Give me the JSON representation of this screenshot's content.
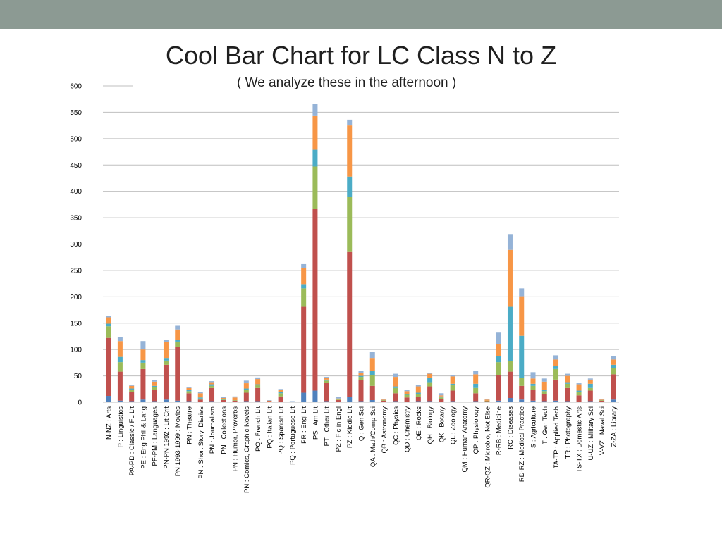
{
  "header": {
    "title": "Cool Bar Chart for LC Class N to Z",
    "subtitle": "( We analyze these in the afternoon )"
  },
  "colors": {
    "top_bar": "#8c9a93",
    "series": [
      "#4f81bd",
      "#c0504d",
      "#9bbb59",
      "#4bacc6",
      "#f79646",
      "#95b3d7"
    ],
    "grid": "#bfbfbf"
  },
  "chart_data": {
    "type": "bar",
    "stacked": true,
    "title": "Cool Bar Chart for LC Class N to Z",
    "subtitle": "( We analyze these in the afternoon )",
    "xlabel": "",
    "ylabel": "",
    "ylim": [
      0,
      600
    ],
    "yticks": [
      0,
      50,
      100,
      150,
      200,
      250,
      300,
      350,
      400,
      450,
      500,
      550,
      600
    ],
    "grid": true,
    "legend": "none",
    "categories": [
      "N-NZ : Arts",
      "P : Linguistics",
      "PA-PD : Classic / FL Lit",
      "PE : Eng Phil & Lang",
      "PF-PM : Languages",
      "PN-PN 1992 : Lit Crit",
      "PN 1993-1999 : Movies",
      "PN : Theatre",
      "PN : Short Story, Diaries",
      "PN : Journalism",
      "PN : Collections",
      "PN : Humor, Proverbs",
      "PN : Comics, Graphic Novels",
      "PQ : French Lit",
      "PQ : Italian Lit",
      "PQ : Spanish Lit",
      "PQ : Portuguese Lit",
      "PR : Engl Lit",
      "PS : Am Lit",
      "PT : Other Lit",
      "PZ : Fic in Engl",
      "PZ : Kiddie Lit",
      "Q : Gen Sci",
      "QA : Math/Comp Sci",
      "QB : Astronomy",
      "QC : Physics",
      "QD : Chemistry",
      "QE : Rocks",
      "QH : Biology",
      "QK : Botany",
      "QL : Zoology",
      "QM : Human Anatomy",
      "QP : Physiology",
      "QR-QZ : Microbio, Not Else",
      "R-RB : Medicine",
      "RC : Diseases",
      "RD-RZ : Medical Practice",
      "S : Agriculture",
      "T : Gen Tech",
      "TA-TP : Applied Tech",
      "TR : Photography",
      "TS-TX : Domestic Arts",
      "U-UZ : Military Sci",
      "V-VZ : Naval Sci",
      "Z-ZA : Library"
    ],
    "series": [
      {
        "values": [
          12,
          3,
          2,
          5,
          2,
          5,
          3,
          2,
          1,
          2,
          1,
          1,
          2,
          2,
          1,
          1,
          0,
          18,
          22,
          2,
          1,
          10,
          2,
          4,
          0,
          2,
          1,
          2,
          2,
          1,
          2,
          0,
          2,
          0,
          3,
          8,
          5,
          3,
          2,
          3,
          2,
          1,
          2,
          0,
          5
        ]
      },
      {
        "values": [
          110,
          55,
          18,
          58,
          22,
          66,
          102,
          15,
          4,
          25,
          3,
          2,
          16,
          25,
          1,
          10,
          1,
          163,
          345,
          35,
          3,
          275,
          40,
          27,
          3,
          15,
          8,
          8,
          28,
          5,
          20,
          0,
          15,
          2,
          48,
          50,
          26,
          20,
          13,
          40,
          25,
          12,
          20,
          3,
          48
        ]
      },
      {
        "values": [
          22,
          18,
          4,
          12,
          5,
          8,
          10,
          4,
          2,
          4,
          1,
          1,
          5,
          5,
          0,
          6,
          0,
          35,
          80,
          4,
          1,
          105,
          6,
          20,
          1,
          10,
          5,
          5,
          8,
          3,
          10,
          0,
          10,
          1,
          25,
          20,
          15,
          8,
          6,
          20,
          8,
          6,
          5,
          1,
          12
        ]
      },
      {
        "values": [
          5,
          10,
          2,
          5,
          2,
          5,
          3,
          2,
          2,
          3,
          1,
          0,
          3,
          2,
          0,
          2,
          0,
          8,
          32,
          2,
          0,
          38,
          2,
          8,
          0,
          3,
          2,
          3,
          8,
          2,
          3,
          0,
          8,
          0,
          12,
          103,
          80,
          4,
          3,
          6,
          3,
          3,
          8,
          0,
          6
        ]
      },
      {
        "values": [
          12,
          30,
          5,
          20,
          8,
          30,
          20,
          4,
          8,
          4,
          2,
          5,
          10,
          10,
          1,
          4,
          0,
          30,
          65,
          3,
          2,
          97,
          6,
          25,
          1,
          18,
          5,
          12,
          8,
          2,
          14,
          0,
          18,
          2,
          22,
          108,
          75,
          10,
          15,
          12,
          12,
          12,
          8,
          1,
          10
        ]
      },
      {
        "values": [
          3,
          8,
          2,
          16,
          3,
          4,
          7,
          2,
          2,
          2,
          2,
          2,
          5,
          3,
          1,
          2,
          1,
          8,
          22,
          2,
          3,
          11,
          3,
          12,
          1,
          6,
          3,
          3,
          2,
          4,
          3,
          0,
          6,
          1,
          22,
          30,
          15,
          12,
          6,
          8,
          4,
          2,
          2,
          1,
          6
        ]
      }
    ]
  }
}
